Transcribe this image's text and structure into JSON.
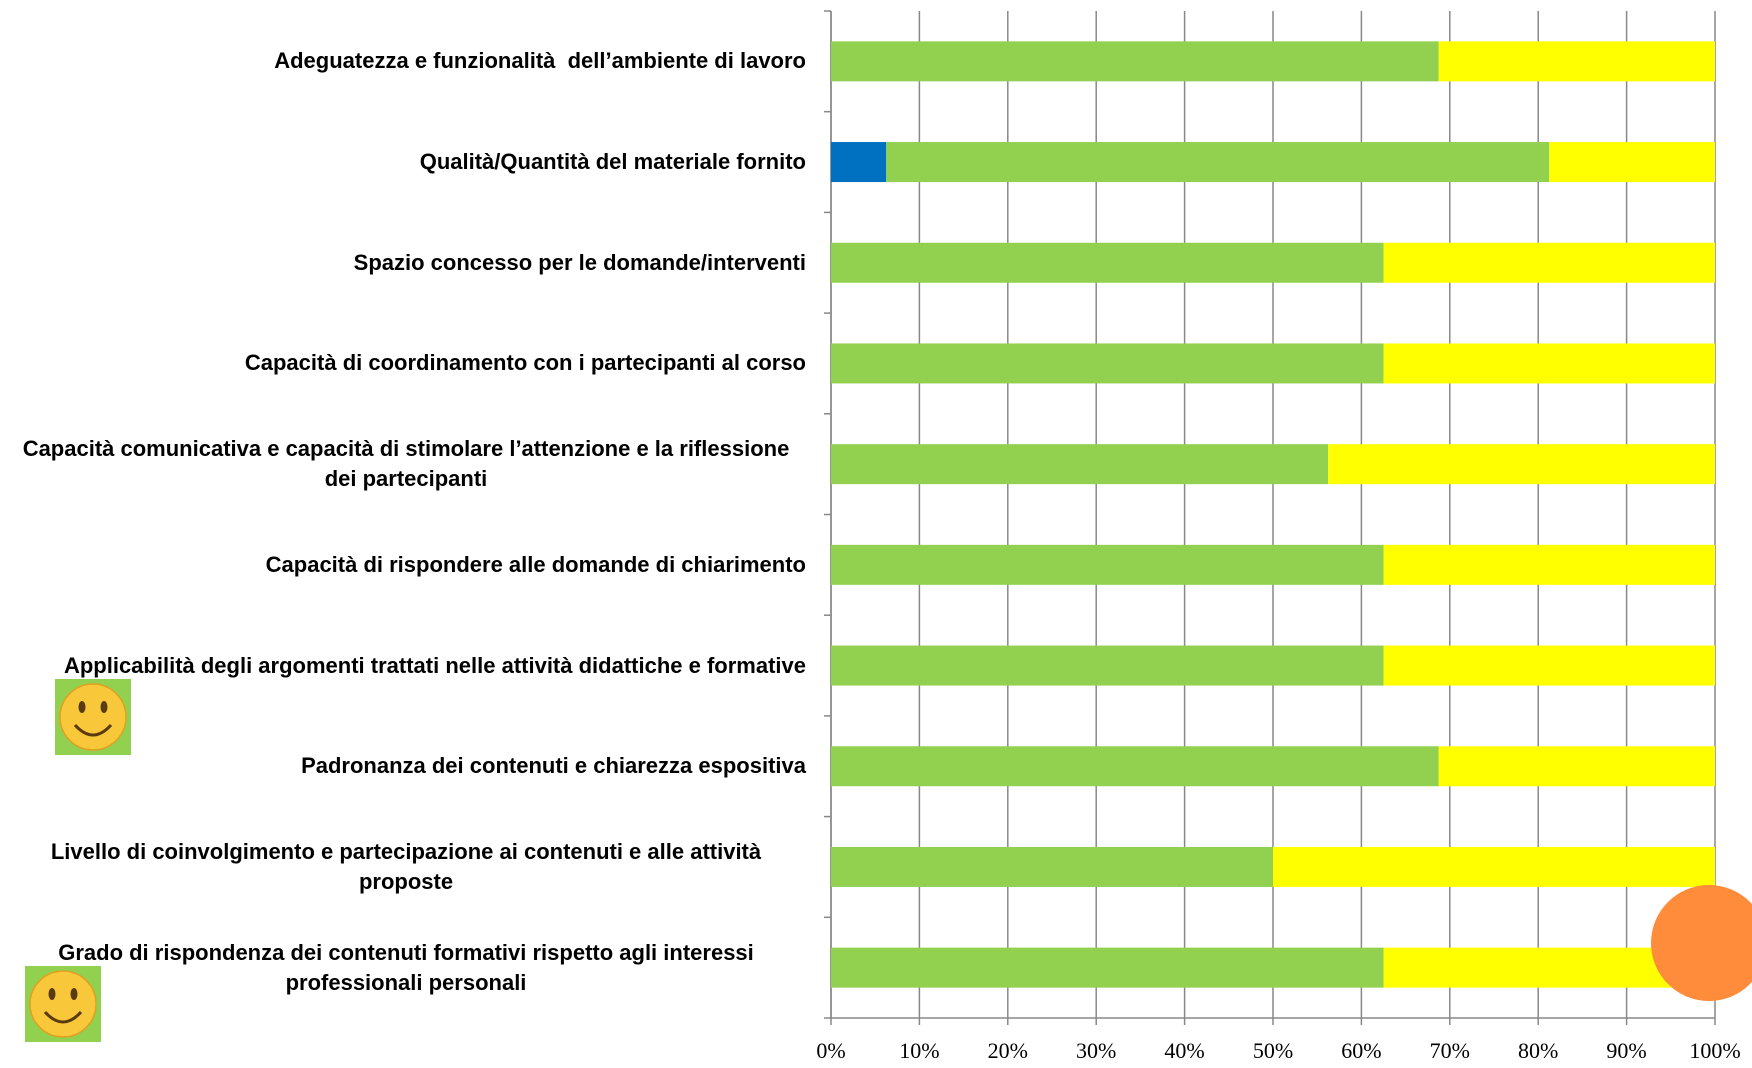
{
  "chart_data": {
    "type": "stacked_barh",
    "categories": [
      "Adeguatezza e funzionalità  dell’ambiente di lavoro",
      "Qualità/Quantità del materiale fornito",
      "Spazio concesso per le domande/interventi",
      "Capacità di coordinamento con i partecipanti al corso",
      "Capacità comunicativa e capacità di stimolare l’attenzione e la riflessione dei partecipanti",
      "Capacità di rispondere alle domande di chiarimento",
      "Applicabilità degli argomenti trattati nelle attività didattiche e formative",
      "Padronanza dei contenuti e chiarezza espositiva",
      "Livello di coinvolgimento e partecipazione ai contenuti e alle attività proposte",
      "Grado di rispondenza dei contenuti formativi rispetto agli interessi  professionali personali"
    ],
    "series": [
      {
        "color": "#0070c0",
        "values": [
          0,
          6.25,
          0,
          0,
          0,
          0,
          0,
          0,
          0,
          0
        ]
      },
      {
        "color": "#92d050",
        "values": [
          68.75,
          75,
          62.5,
          62.5,
          56.25,
          62.5,
          62.5,
          68.75,
          50,
          62.5
        ]
      },
      {
        "color": "#ffff00",
        "values": [
          31.25,
          18.75,
          37.5,
          37.5,
          43.75,
          37.5,
          37.5,
          31.25,
          50,
          37.5
        ]
      }
    ],
    "xlim": [
      0,
      100
    ],
    "xticks": [
      {
        "value": 0,
        "label": "0%"
      },
      {
        "value": 10,
        "label": "10%"
      },
      {
        "value": 20,
        "label": "20%"
      },
      {
        "value": 30,
        "label": "30%"
      },
      {
        "value": 40,
        "label": "40%"
      },
      {
        "value": 50,
        "label": "50%"
      },
      {
        "value": 60,
        "label": "60%"
      },
      {
        "value": 70,
        "label": "70%"
      },
      {
        "value": 80,
        "label": "80%"
      },
      {
        "value": 90,
        "label": "90%"
      },
      {
        "value": 100,
        "label": "100%"
      }
    ],
    "grid": true
  }
}
